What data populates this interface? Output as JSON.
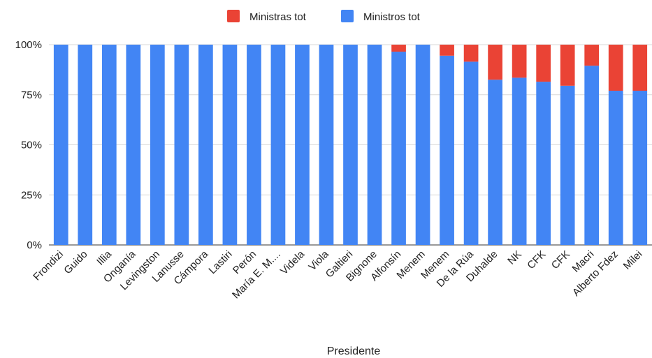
{
  "chart_data": {
    "type": "bar",
    "stacked": true,
    "normalized": true,
    "xlabel": "Presidente",
    "ylabel": "",
    "ylim": [
      0,
      100
    ],
    "y_ticks": [
      "0%",
      "25%",
      "50%",
      "75%",
      "100%"
    ],
    "grid": true,
    "legend_position": "top",
    "categories": [
      "Frondizi",
      "Guido",
      "Illia",
      "Onganía",
      "Levingston",
      "Lanusse",
      "Cámpora",
      "Lastiri",
      "Perón",
      "María E. M....",
      "Videla",
      "Viola",
      "Galtieri",
      "Bignone",
      "Alfonsín",
      "Menem",
      "Menem",
      "De la Rúa",
      "Duhalde",
      "NK",
      "CFK",
      "CFK",
      "Macri",
      "Alberto Fdez",
      "Milei"
    ],
    "series": [
      {
        "name": "Ministras tot",
        "color": "#ea4335",
        "values": [
          0,
          0,
          0,
          0,
          0,
          0,
          0,
          0,
          0,
          0,
          0,
          0,
          0,
          0,
          3.5,
          0,
          5.5,
          8.5,
          17.5,
          16.5,
          18.5,
          20.5,
          10.5,
          23,
          23
        ]
      },
      {
        "name": "Ministros tot",
        "color": "#4285f4",
        "values": [
          100,
          100,
          100,
          100,
          100,
          100,
          100,
          100,
          100,
          100,
          100,
          100,
          100,
          100,
          96.5,
          100,
          94.5,
          91.5,
          82.5,
          83.5,
          81.5,
          79.5,
          89.5,
          77,
          77
        ]
      }
    ]
  }
}
